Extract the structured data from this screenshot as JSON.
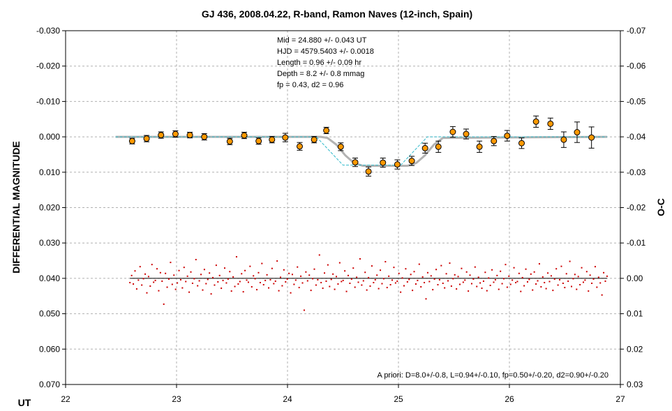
{
  "chart_data": {
    "type": "scatter",
    "title": "GJ 436, 2008.04.22, R-band, Ramon Naves (12-inch, Spain)",
    "xlabel": "UT",
    "ylabel": "DIFFERENTIAL MAGNITUDE",
    "y2label": "O-C",
    "xlim": [
      22,
      27
    ],
    "ylim": [
      -0.03,
      0.07
    ],
    "y_inverted": true,
    "y2lim": [
      -0.07,
      0.03
    ],
    "grid": true,
    "x_ticks": [
      22,
      23,
      24,
      25,
      26,
      27
    ],
    "x_tick_labels": [
      "22",
      "23",
      "24",
      "25",
      "26",
      "27"
    ],
    "y_ticks": [
      -0.03,
      -0.02,
      -0.01,
      0.0,
      0.01,
      0.02,
      0.03,
      0.04,
      0.05,
      0.06,
      0.07
    ],
    "y_tick_labels": [
      "-0.030",
      "-0.020",
      "-0.010",
      "0.000",
      "0.010",
      "0.020",
      "0.030",
      "0.040",
      "0.050",
      "0.060",
      "0.070"
    ],
    "y2_ticks": [
      -0.07,
      -0.06,
      -0.05,
      -0.04,
      -0.03,
      -0.02,
      -0.01,
      0.0,
      0.01,
      0.02,
      0.03
    ],
    "y2_tick_labels": [
      "-0.07",
      "-0.06",
      "-0.05",
      "-0.04",
      "-0.03",
      "-0.02",
      "-0.01",
      "0.00",
      "0.01",
      "0.02",
      "0.03"
    ],
    "info_lines": [
      "Mid  = 24.880 +/- 0.043 UT",
      "HJD = 4579.5403 +/- 0.0018",
      "Length = 0.96 +/- 0.09 hr",
      "Depth = 8.2 +/- 0.8 mmag",
      "fp = 0.43, d2 = 0.96"
    ],
    "prior_note": "A priori: D=8.0+/-0.8, L=0.94+/-0.10, fp=0.50+/-0.20, d2=0.90+/-0.20",
    "binned": {
      "color": "#ff9900",
      "x": [
        22.6,
        22.73,
        22.86,
        22.99,
        23.12,
        23.25,
        23.48,
        23.61,
        23.74,
        23.86,
        23.98,
        24.11,
        24.24,
        24.35,
        24.48,
        24.61,
        24.73,
        24.86,
        24.99,
        25.12,
        25.24,
        25.36,
        25.49,
        25.61,
        25.73,
        25.86,
        25.98,
        26.11,
        26.24,
        26.37,
        26.49,
        26.61,
        26.74
      ],
      "y": [
        0.0012,
        0.0005,
        -0.0005,
        -0.0008,
        -0.0005,
        0.0,
        0.0013,
        -0.0004,
        0.0012,
        0.0008,
        0.0002,
        0.0027,
        0.0008,
        -0.0018,
        0.0028,
        0.0072,
        0.0098,
        0.0073,
        0.0078,
        0.0068,
        0.0032,
        0.0028,
        -0.0014,
        -0.0008,
        0.0028,
        0.0012,
        -0.0003,
        0.0018,
        -0.0043,
        -0.0037,
        0.0008,
        -0.0013,
        0.0002
      ],
      "err": [
        0.0008,
        0.0009,
        0.0009,
        0.0009,
        0.0008,
        0.0009,
        0.0009,
        0.0009,
        0.0009,
        0.0009,
        0.0012,
        0.0011,
        0.0009,
        0.0009,
        0.0011,
        0.0012,
        0.0013,
        0.0013,
        0.0013,
        0.0013,
        0.0014,
        0.0016,
        0.0015,
        0.0014,
        0.0016,
        0.0013,
        0.0015,
        0.0015,
        0.0016,
        0.0016,
        0.0022,
        0.0029,
        0.003
      ]
    },
    "fit_model": {
      "color": "#b3b3b3",
      "x": [
        22.45,
        24.3,
        24.36,
        24.44,
        24.52,
        24.6,
        24.68,
        25.08,
        25.16,
        25.24,
        25.32,
        25.4,
        26.88
      ],
      "y": [
        0.0,
        0.0,
        0.0003,
        0.0022,
        0.0052,
        0.0074,
        0.0082,
        0.0082,
        0.0074,
        0.0052,
        0.0022,
        0.0003,
        0.0
      ]
    },
    "prior_model": {
      "color": "#33bbcc",
      "x": [
        22.45,
        24.26,
        24.5,
        25.02,
        25.26,
        26.88
      ],
      "y": [
        0.0,
        0.0,
        0.008,
        0.008,
        0.0,
        0.0
      ]
    },
    "residuals": {
      "color": "#cc0000",
      "baseline": 0.0,
      "x_start": 22.58,
      "x_end": 26.88,
      "values": [
        0.0012,
        -0.0008,
        0.0016,
        -0.0021,
        0.003,
        0.0005,
        -0.0033,
        0.0019,
        0.0001,
        -0.0012,
        0.0041,
        -0.0005,
        0.0022,
        -0.0039,
        0.0011,
        0.0006,
        -0.0027,
        0.0035,
        -0.0016,
        0.0008,
        0.0073,
        -0.0014,
        0.0025,
        0.0002,
        -0.0045,
        0.0017,
        -0.0009,
        0.0031,
        0.0013,
        -0.0022,
        0.0004,
        0.0027,
        -0.0031,
        0.0009,
        -0.0006,
        0.0039,
        -0.0018,
        0.0014,
        0.0001,
        -0.0053,
        0.0021,
        0.0007,
        -0.0011,
        0.0033,
        -0.0025,
        0.0015,
        0.0003,
        -0.0015,
        0.0044,
        -0.0002,
        0.0019,
        -0.0037,
        0.001,
        -0.0008,
        0.0028,
        0.0006,
        -0.0029,
        0.0013,
        0.0002,
        -0.0019,
        0.0036,
        -0.0004,
        0.0023,
        -0.0061,
        0.0016,
        0.0009,
        -0.0013,
        0.0038,
        -0.0022,
        0.0005,
        0.0011,
        -0.0034,
        0.0024,
        -0.0007,
        0.0001,
        0.0032,
        -0.0016,
        0.0012,
        -0.0042,
        0.0018,
        0.0006,
        -0.001,
        0.0027,
        0.0004,
        -0.0028,
        0.0015,
        0.0008,
        -0.0049,
        0.0035,
        -0.0003,
        0.0021,
        -0.0024,
        0.001,
        0.0002,
        -0.0014,
        0.0041,
        -0.0011,
        0.0017,
        0.0005,
        -0.0032,
        0.0026,
        -0.0006,
        0.0013,
        0.009,
        -0.0018,
        0.0007,
        -0.0009,
        0.0034,
        0.0001,
        -0.0026,
        0.0019,
        0.0004,
        -0.0066,
        0.0012,
        0.0028,
        -0.0015,
        0.0008,
        -0.0038,
        0.0023,
        0.0003,
        -0.0012,
        0.0031,
        -0.0005,
        0.0016,
        -0.0044,
        0.0009,
        0.0006,
        -0.0021,
        0.0037,
        -0.0008,
        0.0014,
        0.0002,
        -0.0029,
        0.0025,
        -0.0003,
        0.0011,
        -0.0055,
        0.0019,
        0.0007,
        -0.0017,
        0.0033,
        -0.0002,
        0.0022,
        -0.0035,
        0.0012,
        0.0004,
        -0.0009,
        0.0029,
        -0.0023,
        0.0015,
        0.0001,
        -0.0047,
        0.0026,
        -0.0006,
        0.0018,
        0.0005,
        -0.0031,
        0.0013,
        0.0008,
        -0.0014,
        0.0039,
        -0.0001,
        0.0021,
        -0.0027,
        0.001,
        0.0003,
        -0.0011,
        0.0034,
        -0.0019,
        0.0016,
        0.0006,
        -0.004,
        0.0024,
        -0.0004,
        0.0012,
        0.0058,
        -0.0016,
        0.0009,
        -0.0007,
        0.0032,
        0.0002,
        -0.0025,
        0.0018,
        0.0004,
        -0.0036,
        0.0014,
        0.0027,
        -0.0013,
        0.0007,
        -0.0043,
        0.0022,
        0.0001,
        -0.001,
        0.003,
        -0.0005,
        0.0017,
        -0.0028,
        0.0011,
        0.0005,
        -0.0018,
        0.0036,
        -0.0009,
        0.0015,
        0.0002,
        -0.0032,
        0.0023,
        -0.0003,
        0.0013,
        0.0028,
        0.0008,
        -0.0017,
        0.0035,
        -0.0001,
        0.002,
        -0.0024,
        0.0011,
        0.0004,
        -0.0008,
        0.0031,
        -0.002,
        0.0015,
        0.0001,
        -0.0039,
        0.0025,
        -0.0006,
        0.0017,
        0.0005,
        -0.003,
        0.0012,
        0.0009,
        -0.0014,
        0.0037,
        -0.0002,
        0.0021,
        -0.0026,
        0.001,
        0.0003,
        -0.0012,
        0.0033,
        -0.0018,
        0.0016,
        0.0007,
        -0.0041,
        0.0024,
        -0.0004,
        0.0012,
        0.0029,
        -0.0015,
        0.0009,
        -0.0007,
        0.0034,
        0.0002,
        -0.0027,
        0.0019,
        0.0004,
        -0.0034,
        0.0014,
        0.0026,
        -0.0013,
        0.0008,
        -0.0048,
        0.0023,
        0.0001,
        -0.0011,
        0.0031,
        -0.0005,
        0.0018,
        -0.003,
        0.0011,
        0.0005,
        -0.0019,
        0.0036,
        -0.0009,
        0.0014,
        0.0002,
        -0.0033,
        0.0025,
        -0.0003,
        0.0013,
        0.0047,
        -0.0016,
        0.0008,
        -0.0006
      ]
    }
  }
}
